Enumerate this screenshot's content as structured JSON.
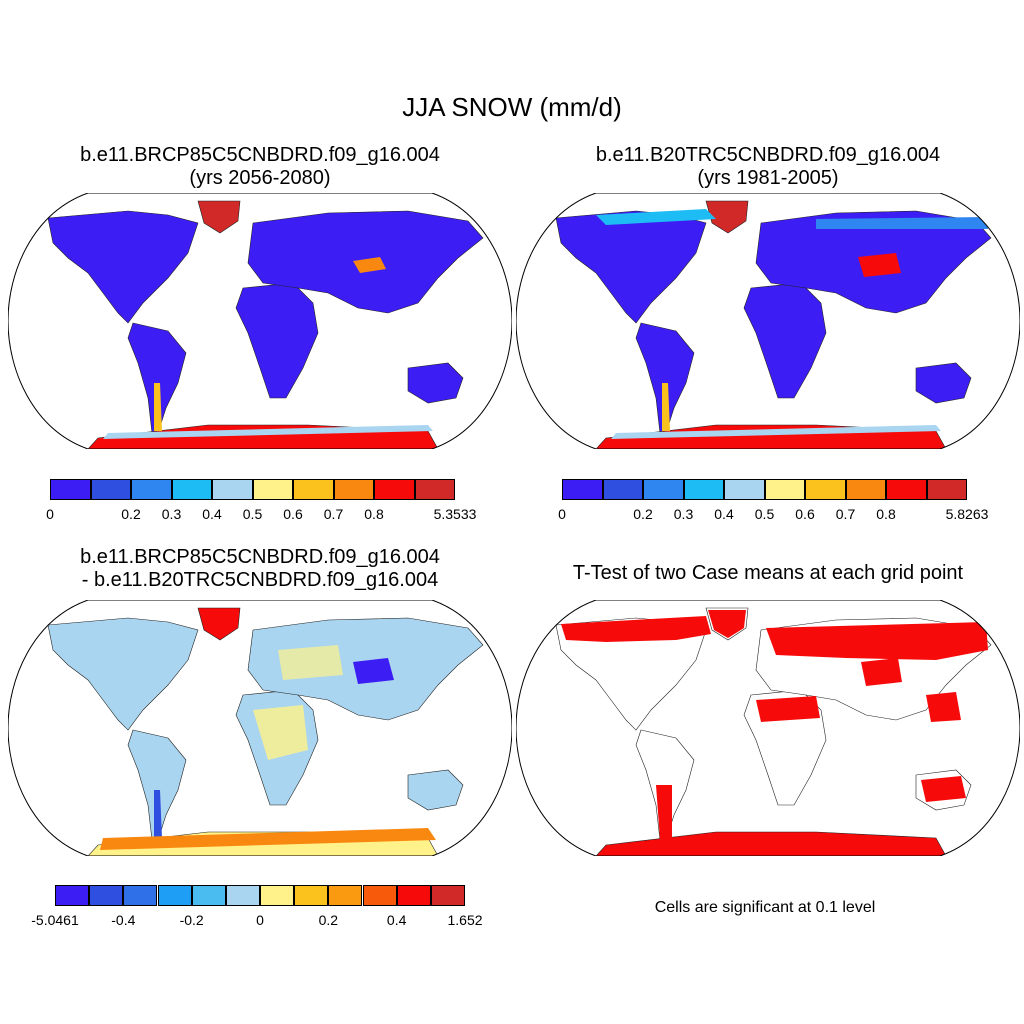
{
  "main_title": "JJA SNOW (mm/d)",
  "panels": [
    {
      "id": "top-left",
      "title_line1": "b.e11.BRCP85C5CNBDRD.f09_g16.004",
      "title_line2": "(yrs 2056-2080)",
      "colorbar": {
        "labels": [
          "0",
          "0.2",
          "0.3",
          "0.4",
          "0.5",
          "0.6",
          "0.7",
          "0.8",
          "5.3533"
        ],
        "colors": [
          "#3c1ef5",
          "#2e4fe0",
          "#2f86f0",
          "#1ebcf5",
          "#a9d5f0",
          "#fff28a",
          "#fbc21e",
          "#f98810",
          "#f70a0a",
          "#d12828"
        ]
      }
    },
    {
      "id": "top-right",
      "title_line1": "b.e11.B20TRC5CNBDRD.f09_g16.004",
      "title_line2": "(yrs 1981-2005)",
      "colorbar": {
        "labels": [
          "0",
          "0.2",
          "0.3",
          "0.4",
          "0.5",
          "0.6",
          "0.7",
          "0.8",
          "5.8263"
        ],
        "colors": [
          "#3c1ef5",
          "#2e4fe0",
          "#2f86f0",
          "#1ebcf5",
          "#a9d5f0",
          "#fff28a",
          "#fbc21e",
          "#f98810",
          "#f70a0a",
          "#d12828"
        ]
      }
    },
    {
      "id": "bottom-left",
      "title_line1": "b.e11.BRCP85C5CNBDRD.f09_g16.004",
      "title_line2": "- b.e11.B20TRC5CNBDRD.f09_g16.004",
      "colorbar": {
        "labels": [
          "-5.0461",
          "-0.4",
          "-0.2",
          "0",
          "0.2",
          "0.4",
          "1.652"
        ],
        "colors": [
          "#3c1ef5",
          "#2e4fe0",
          "#2f6fe8",
          "#1e9ff5",
          "#4bbcef",
          "#a9d5f0",
          "#fff28a",
          "#fbc21e",
          "#f99a10",
          "#f75a0a",
          "#f70a0a",
          "#d12828"
        ]
      }
    },
    {
      "id": "bottom-right",
      "title_line1": "T-Test of two Case means at each grid point",
      "note": "Cells are significant at 0.1 level"
    }
  ],
  "map_colors": {
    "ocean": "#ffffff",
    "land_low": "#3c1ef5",
    "land_diff": "#a9d5f0",
    "diff_pos": "#fff28a",
    "significant": "#f70a0a",
    "coast": "#000000"
  }
}
